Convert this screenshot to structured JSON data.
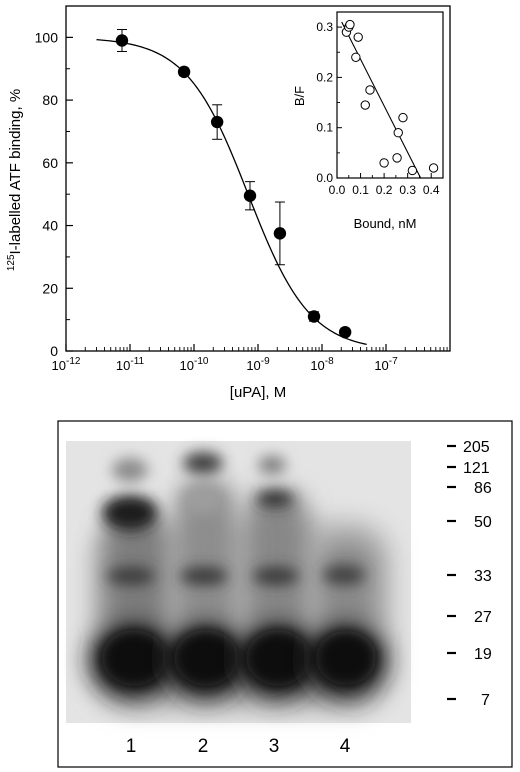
{
  "chart_data": [
    {
      "type": "scatter",
      "panel": "main",
      "ylabel_superscript": "125",
      "ylabel_rest": "I-labelled ATF binding, %",
      "xlabel": "[uPA], M",
      "xscale": "log",
      "xlim": [
        1e-12,
        1e-06
      ],
      "ylim": [
        0,
        110
      ],
      "x_tick_labels": [
        {
          "base": "10",
          "exp": "-12",
          "value": 1e-12
        },
        {
          "base": "10",
          "exp": "-11",
          "value": 1e-11
        },
        {
          "base": "10",
          "exp": "-10",
          "value": 1e-10
        },
        {
          "base": "10",
          "exp": "-9",
          "value": 1e-09
        },
        {
          "base": "10",
          "exp": "-8",
          "value": 1e-08
        },
        {
          "base": "10",
          "exp": "-7",
          "value": 1e-07
        }
      ],
      "y_ticks": [
        0,
        20,
        40,
        60,
        80,
        100
      ],
      "points": [
        {
          "x": 7.5e-12,
          "y": 99,
          "err": 3.5
        },
        {
          "x": 7e-11,
          "y": 89,
          "err": 1.2
        },
        {
          "x": 2.3e-10,
          "y": 73,
          "err": 5.5
        },
        {
          "x": 7.5e-10,
          "y": 49.5,
          "err": 4.5
        },
        {
          "x": 2.2e-09,
          "y": 37.5,
          "err": 10
        },
        {
          "x": 7.5e-09,
          "y": 11,
          "err": 1.5
        },
        {
          "x": 2.3e-08,
          "y": 6,
          "err": 0.8
        }
      ],
      "fit_curve": {
        "top": 100,
        "bottom": 0,
        "ic50": 7e-10,
        "hill": 0.9,
        "x_from": 3e-12,
        "x_to": 5e-08
      }
    },
    {
      "type": "scatter",
      "panel": "inset",
      "xlabel": "Bound, nM",
      "ylabel": "B/F",
      "xlim": [
        0,
        0.45
      ],
      "ylim": [
        0,
        0.33
      ],
      "x_ticks": [
        "0.0",
        "0.1",
        "0.2",
        "0.3",
        "0.4"
      ],
      "y_ticks": [
        "0.0",
        "0.1",
        "0.2",
        "0.3"
      ],
      "points": [
        {
          "x": 0.04,
          "y": 0.29
        },
        {
          "x": 0.05,
          "y": 0.3
        },
        {
          "x": 0.055,
          "y": 0.305
        },
        {
          "x": 0.08,
          "y": 0.24
        },
        {
          "x": 0.09,
          "y": 0.28
        },
        {
          "x": 0.12,
          "y": 0.145
        },
        {
          "x": 0.14,
          "y": 0.175
        },
        {
          "x": 0.2,
          "y": 0.03
        },
        {
          "x": 0.255,
          "y": 0.04
        },
        {
          "x": 0.26,
          "y": 0.09
        },
        {
          "x": 0.28,
          "y": 0.12
        },
        {
          "x": 0.32,
          "y": 0.015
        },
        {
          "x": 0.41,
          "y": 0.02
        }
      ],
      "fit_line": {
        "x1": 0.02,
        "y1": 0.31,
        "x2": 0.355,
        "y2": 0.0
      }
    }
  ],
  "gel": {
    "lane_labels": [
      "1",
      "2",
      "3",
      "4"
    ],
    "marker_labels": [
      "205",
      "121",
      "86",
      "50",
      "33",
      "27",
      "19",
      "7"
    ]
  }
}
